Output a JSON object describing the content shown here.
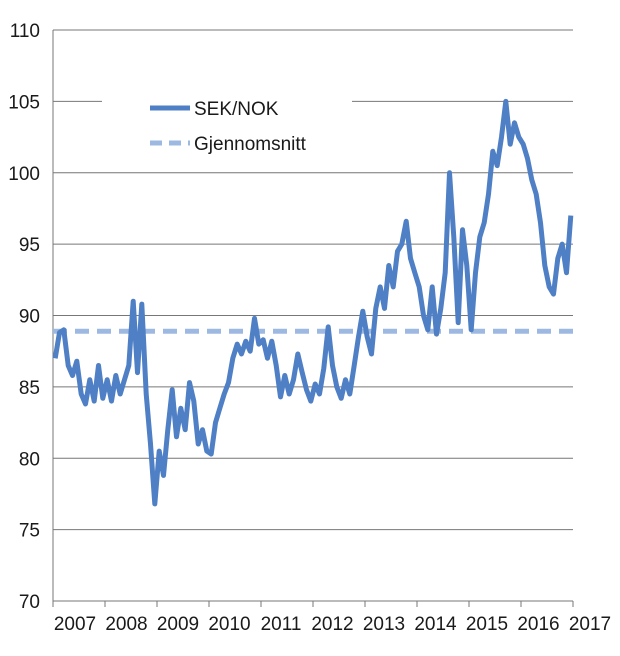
{
  "chart_data": {
    "type": "line",
    "title": "",
    "xlabel": "",
    "ylabel": "",
    "ylim": [
      70,
      110
    ],
    "yticks": [
      "70",
      "75",
      "80",
      "85",
      "90",
      "95",
      "100",
      "105",
      "110"
    ],
    "xticklabels": [
      "2007",
      "2008",
      "2009",
      "2010",
      "2011",
      "2012",
      "2013",
      "2014",
      "2015",
      "2016",
      "2017"
    ],
    "xrange": [
      "2007-01",
      "2016-12"
    ],
    "grid": "horizontal",
    "legend_position": "top-left",
    "series": [
      {
        "name": "SEK/NOK",
        "color": "#4f7fc4",
        "style": "solid",
        "x": [
          "2007-01",
          "2007-02",
          "2007-03",
          "2007-04",
          "2007-05",
          "2007-06",
          "2007-07",
          "2007-08",
          "2007-09",
          "2007-10",
          "2007-11",
          "2007-12",
          "2008-01",
          "2008-02",
          "2008-03",
          "2008-04",
          "2008-05",
          "2008-06",
          "2008-07",
          "2008-08",
          "2008-09",
          "2008-10",
          "2008-11",
          "2008-12",
          "2009-01",
          "2009-02",
          "2009-03",
          "2009-04",
          "2009-05",
          "2009-06",
          "2009-07",
          "2009-08",
          "2009-09",
          "2009-10",
          "2009-11",
          "2009-12",
          "2010-01",
          "2010-02",
          "2010-03",
          "2010-04",
          "2010-05",
          "2010-06",
          "2010-07",
          "2010-08",
          "2010-09",
          "2010-10",
          "2010-11",
          "2010-12",
          "2011-01",
          "2011-02",
          "2011-03",
          "2011-04",
          "2011-05",
          "2011-06",
          "2011-07",
          "2011-08",
          "2011-09",
          "2011-10",
          "2011-11",
          "2011-12",
          "2012-01",
          "2012-02",
          "2012-03",
          "2012-04",
          "2012-05",
          "2012-06",
          "2012-07",
          "2012-08",
          "2012-09",
          "2012-10",
          "2012-11",
          "2012-12",
          "2013-01",
          "2013-02",
          "2013-03",
          "2013-04",
          "2013-05",
          "2013-06",
          "2013-07",
          "2013-08",
          "2013-09",
          "2013-10",
          "2013-11",
          "2013-12",
          "2014-01",
          "2014-02",
          "2014-03",
          "2014-04",
          "2014-05",
          "2014-06",
          "2014-07",
          "2014-08",
          "2014-09",
          "2014-10",
          "2014-11",
          "2014-12",
          "2015-01",
          "2015-02",
          "2015-03",
          "2015-04",
          "2015-05",
          "2015-06",
          "2015-07",
          "2015-08",
          "2015-09",
          "2015-10",
          "2015-11",
          "2015-12",
          "2016-01",
          "2016-02",
          "2016-03",
          "2016-04",
          "2016-05",
          "2016-06",
          "2016-07",
          "2016-08",
          "2016-09",
          "2016-10",
          "2016-11",
          "2016-12"
        ],
        "values": [
          87.0,
          88.8,
          89.0,
          86.5,
          85.8,
          86.8,
          84.5,
          83.8,
          85.5,
          84.0,
          86.5,
          84.2,
          85.5,
          84.0,
          85.8,
          84.5,
          85.5,
          86.5,
          91.0,
          86.0,
          90.8,
          84.5,
          81.0,
          76.8,
          80.5,
          78.8,
          82.0,
          84.8,
          81.5,
          83.5,
          82.0,
          85.3,
          84.0,
          81.0,
          82.0,
          80.5,
          80.3,
          82.5,
          83.5,
          84.5,
          85.3,
          87.0,
          88.0,
          87.3,
          88.2,
          87.5,
          89.8,
          88.0,
          88.3,
          87.0,
          88.2,
          86.5,
          84.3,
          85.8,
          84.5,
          85.5,
          87.3,
          86.0,
          84.8,
          84.0,
          85.2,
          84.5,
          86.3,
          89.2,
          86.5,
          85.0,
          84.2,
          85.5,
          84.5,
          86.5,
          88.5,
          90.3,
          88.5,
          87.3,
          90.5,
          92.0,
          90.5,
          93.5,
          92.0,
          94.5,
          95.0,
          96.6,
          94.0,
          93.0,
          92.0,
          90.0,
          89.0,
          92.0,
          88.7,
          90.5,
          93.0,
          100.0,
          95.5,
          89.5,
          96.0,
          93.5,
          89.0,
          93.0,
          95.5,
          96.5,
          98.5,
          101.5,
          100.5,
          102.5,
          105.0,
          102.0,
          103.5,
          102.5,
          102.0,
          101.0,
          99.5,
          98.5,
          96.5,
          93.5,
          92.0,
          91.5,
          94.0,
          95.0,
          93.0,
          97.0
        ]
      },
      {
        "name": "Gjennomsnitt",
        "color": "#9db9e2",
        "style": "dashed",
        "value": 88.9
      }
    ]
  }
}
